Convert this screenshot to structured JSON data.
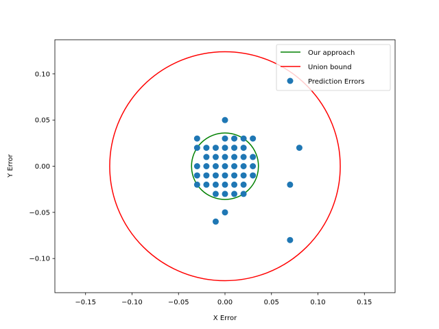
{
  "chart_data": {
    "type": "scatter",
    "title": "",
    "xlabel": "X Error",
    "ylabel": "Y Error",
    "xlim": [
      -0.183,
      0.183
    ],
    "ylim": [
      -0.137,
      0.137
    ],
    "xticks": [
      -0.15,
      -0.1,
      -0.05,
      0.0,
      0.05,
      0.1,
      0.15
    ],
    "xtick_labels": [
      "−0.15",
      "−0.10",
      "−0.05",
      "0.00",
      "0.05",
      "0.10",
      "0.15"
    ],
    "yticks": [
      -0.1,
      -0.05,
      0.0,
      0.05,
      0.1
    ],
    "ytick_labels": [
      "−0.10",
      "−0.05",
      "0.00",
      "0.05",
      "0.10"
    ],
    "grid": false,
    "legend_position": "top-right",
    "series": [
      {
        "name": "Our approach",
        "kind": "circle",
        "center": [
          0,
          0
        ],
        "radius": 0.036,
        "color": "#008000"
      },
      {
        "name": "Union bound",
        "kind": "circle",
        "center": [
          0,
          0
        ],
        "radius": 0.124,
        "color": "#ff0000"
      },
      {
        "name": "Prediction Errors",
        "kind": "points",
        "color": "#1f77b4",
        "points": [
          [
            0.0,
            0.05
          ],
          [
            -0.03,
            0.03
          ],
          [
            0.0,
            0.03
          ],
          [
            0.01,
            0.03
          ],
          [
            0.02,
            0.03
          ],
          [
            0.03,
            0.03
          ],
          [
            -0.03,
            0.02
          ],
          [
            -0.02,
            0.02
          ],
          [
            -0.01,
            0.02
          ],
          [
            0.0,
            0.02
          ],
          [
            0.01,
            0.02
          ],
          [
            0.02,
            0.02
          ],
          [
            -0.02,
            0.01
          ],
          [
            -0.01,
            0.01
          ],
          [
            0.0,
            0.01
          ],
          [
            0.01,
            0.01
          ],
          [
            0.02,
            0.01
          ],
          [
            0.03,
            0.01
          ],
          [
            -0.03,
            0.0
          ],
          [
            -0.02,
            0.0
          ],
          [
            -0.01,
            0.0
          ],
          [
            0.0,
            0.0
          ],
          [
            0.01,
            0.0
          ],
          [
            0.02,
            0.0
          ],
          [
            0.03,
            0.0
          ],
          [
            -0.03,
            -0.01
          ],
          [
            -0.02,
            -0.01
          ],
          [
            -0.01,
            -0.01
          ],
          [
            0.0,
            -0.01
          ],
          [
            0.01,
            -0.01
          ],
          [
            0.02,
            -0.01
          ],
          [
            0.03,
            -0.01
          ],
          [
            -0.03,
            -0.02
          ],
          [
            -0.02,
            -0.02
          ],
          [
            -0.01,
            -0.02
          ],
          [
            0.0,
            -0.02
          ],
          [
            0.01,
            -0.02
          ],
          [
            0.02,
            -0.02
          ],
          [
            -0.01,
            -0.03
          ],
          [
            0.0,
            -0.03
          ],
          [
            0.01,
            -0.03
          ],
          [
            0.02,
            -0.03
          ],
          [
            0.0,
            -0.05
          ],
          [
            -0.01,
            -0.06
          ],
          [
            0.08,
            0.02
          ],
          [
            0.07,
            -0.02
          ],
          [
            0.07,
            -0.08
          ]
        ]
      }
    ]
  }
}
